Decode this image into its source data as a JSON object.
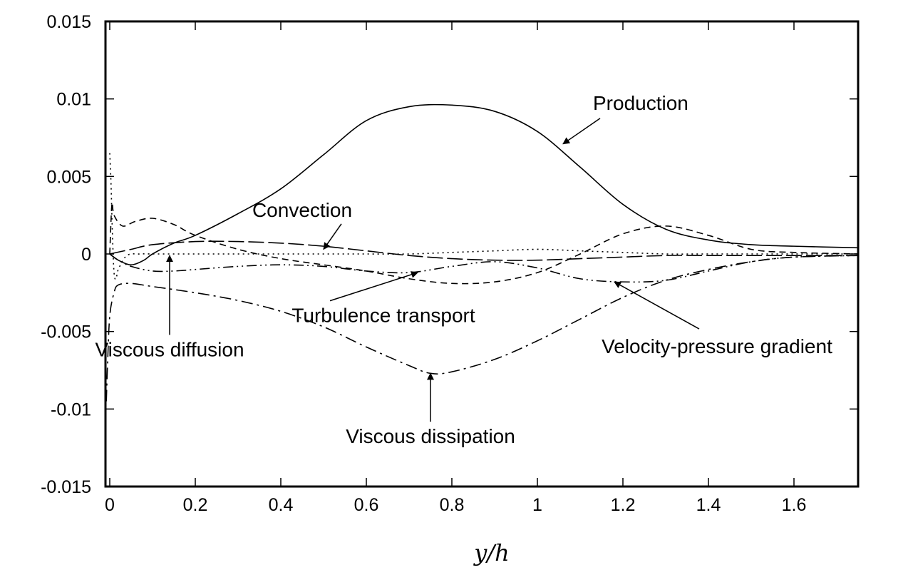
{
  "chart_data": {
    "type": "line",
    "title": "",
    "xlabel": "y/h",
    "ylabel": "",
    "xlim": [
      -0.01,
      1.75
    ],
    "ylim": [
      -0.015,
      0.015
    ],
    "grid": false,
    "legend": "none",
    "x_ticks": [
      {
        "value": 0,
        "label": "0"
      },
      {
        "value": 0.2,
        "label": "0.2"
      },
      {
        "value": 0.4,
        "label": "0.4"
      },
      {
        "value": 0.6,
        "label": "0.6"
      },
      {
        "value": 0.8,
        "label": "0.8"
      },
      {
        "value": 1.0,
        "label": "1"
      },
      {
        "value": 1.2,
        "label": "1.2"
      },
      {
        "value": 1.4,
        "label": "1.4"
      },
      {
        "value": 1.6,
        "label": "1.6"
      }
    ],
    "y_ticks": [
      {
        "value": 0.015,
        "label": "0.015"
      },
      {
        "value": 0.01,
        "label": "0.01"
      },
      {
        "value": 0.005,
        "label": "0.005"
      },
      {
        "value": 0,
        "label": "0"
      },
      {
        "value": -0.005,
        "label": "-0.005"
      },
      {
        "value": -0.01,
        "label": "-0.01"
      },
      {
        "value": -0.015,
        "label": "-0.015"
      }
    ],
    "series": [
      {
        "key": "production",
        "dash": "solid",
        "x": [
          0,
          0.02,
          0.05,
          0.08,
          0.1,
          0.15,
          0.2,
          0.3,
          0.4,
          0.5,
          0.6,
          0.7,
          0.8,
          0.9,
          1.0,
          1.1,
          1.2,
          1.3,
          1.4,
          1.5,
          1.6,
          1.75
        ],
        "y": [
          0,
          -0.0004,
          -0.0007,
          -0.0004,
          0,
          0.0007,
          0.0012,
          0.0026,
          0.0042,
          0.0064,
          0.0086,
          0.0095,
          0.0096,
          0.0092,
          0.0079,
          0.0056,
          0.0032,
          0.0016,
          0.0009,
          0.0006,
          0.0005,
          0.0004
        ]
      },
      {
        "key": "convection",
        "dash": "long-dash",
        "x": [
          0,
          0.05,
          0.1,
          0.2,
          0.3,
          0.4,
          0.5,
          0.6,
          0.7,
          0.8,
          0.9,
          1.0,
          1.1,
          1.2,
          1.3,
          1.4,
          1.5,
          1.6,
          1.75
        ],
        "y": [
          0,
          0.0003,
          0.0006,
          0.0008,
          0.0008,
          0.0007,
          0.0005,
          0.0002,
          -0.0001,
          -0.0003,
          -0.0004,
          -0.0004,
          -0.0003,
          -0.0002,
          -0.0001,
          -0.0001,
          -0.0001,
          -0.0001,
          -0.0001
        ]
      },
      {
        "key": "turbulence-transport",
        "dash": "short-dash",
        "x": [
          0,
          0.005,
          0.01,
          0.03,
          0.06,
          0.1,
          0.15,
          0.2,
          0.3,
          0.4,
          0.5,
          0.6,
          0.7,
          0.8,
          0.9,
          1.0,
          1.1,
          1.2,
          1.3,
          1.4,
          1.5,
          1.6,
          1.75
        ],
        "y": [
          0,
          0.0032,
          0.0025,
          0.0018,
          0.0021,
          0.0023,
          0.0019,
          0.0012,
          0.0003,
          -0.0003,
          -0.0007,
          -0.0011,
          -0.0016,
          -0.0019,
          -0.0018,
          -0.0012,
          0,
          0.0013,
          0.0018,
          0.0012,
          0.0003,
          0.0001,
          0
        ]
      },
      {
        "key": "viscous-diffusion",
        "dash": "dotted",
        "x": [
          0,
          0.003,
          0.006,
          0.01,
          0.015,
          0.02,
          0.04,
          0.07,
          0.1,
          0.2,
          0.3,
          0.4,
          0.5,
          0.6,
          0.7,
          0.8,
          0.9,
          1.0,
          1.1,
          1.2,
          1.3,
          1.4,
          1.6,
          1.75
        ],
        "y": [
          0.0065,
          0.0045,
          0.0015,
          -0.0012,
          -0.0016,
          -0.001,
          -0.0001,
          0,
          0,
          0,
          0,
          0,
          0,
          0,
          0,
          0.0001,
          0.0002,
          0.0003,
          0.0002,
          0.0001,
          0,
          0,
          0,
          0
        ]
      },
      {
        "key": "velocity-pressure-gradient",
        "dash": "dash-dot-dot",
        "x": [
          0,
          0.02,
          0.05,
          0.1,
          0.15,
          0.2,
          0.3,
          0.4,
          0.5,
          0.6,
          0.7,
          0.8,
          0.9,
          1.0,
          1.1,
          1.2,
          1.3,
          1.4,
          1.5,
          1.6,
          1.75
        ],
        "y": [
          0,
          -0.0004,
          -0.0008,
          -0.0011,
          -0.0011,
          -0.001,
          -0.0008,
          -0.0007,
          -0.0008,
          -0.0011,
          -0.0012,
          -0.0008,
          -0.0005,
          -0.0009,
          -0.0016,
          -0.0018,
          -0.0017,
          -0.0011,
          -0.0005,
          -0.0002,
          -0.0001
        ]
      },
      {
        "key": "viscous-dissipation",
        "dash": "dash-dot",
        "x": [
          -0.008,
          -0.005,
          0,
          0.01,
          0.02,
          0.05,
          0.1,
          0.2,
          0.3,
          0.4,
          0.5,
          0.6,
          0.7,
          0.75,
          0.8,
          0.9,
          1.0,
          1.1,
          1.2,
          1.3,
          1.4,
          1.5,
          1.6,
          1.75
        ],
        "y": [
          -0.0095,
          -0.007,
          -0.004,
          -0.0025,
          -0.002,
          -0.0019,
          -0.0021,
          -0.0025,
          -0.003,
          -0.0037,
          -0.0047,
          -0.006,
          -0.0072,
          -0.0077,
          -0.0076,
          -0.0068,
          -0.0056,
          -0.0042,
          -0.0028,
          -0.0017,
          -0.001,
          -0.0005,
          -0.0002,
          -0.0001
        ]
      }
    ],
    "annotations": [
      {
        "key": "production",
        "text": "Production",
        "point": [
          1.06,
          0.0071
        ],
        "text_pos": [
          1.13,
          0.0093
        ],
        "align": "start",
        "arrow": "tail-at-text"
      },
      {
        "key": "convection",
        "text": "Convection",
        "point": [
          0.5,
          0.0003
        ],
        "text_pos": [
          0.45,
          0.0024
        ],
        "align": "middle",
        "arrow": "tail-at-text"
      },
      {
        "key": "turbulence-transport",
        "text": "Turbulence transport",
        "point": [
          0.72,
          -0.0012
        ],
        "text_pos": [
          0.64,
          -0.0044
        ],
        "align": "middle",
        "arrow": "tail-at-text"
      },
      {
        "key": "viscous-diffusion",
        "text": "Viscous diffusion",
        "point": [
          0.14,
          -0.0001
        ],
        "text_pos": [
          0.14,
          -0.0066
        ],
        "align": "middle",
        "arrow": "vertical"
      },
      {
        "key": "velocity-pressure-gradient",
        "text": "Velocity-pressure gradient",
        "point": [
          1.18,
          -0.0018
        ],
        "text_pos": [
          1.42,
          -0.0064
        ],
        "align": "middle",
        "arrow": "tail-at-text"
      },
      {
        "key": "viscous-dissipation",
        "text": "Viscous dissipation",
        "point": [
          0.75,
          -0.0077
        ],
        "text_pos": [
          0.75,
          -0.0122
        ],
        "align": "middle",
        "arrow": "vertical"
      }
    ]
  }
}
